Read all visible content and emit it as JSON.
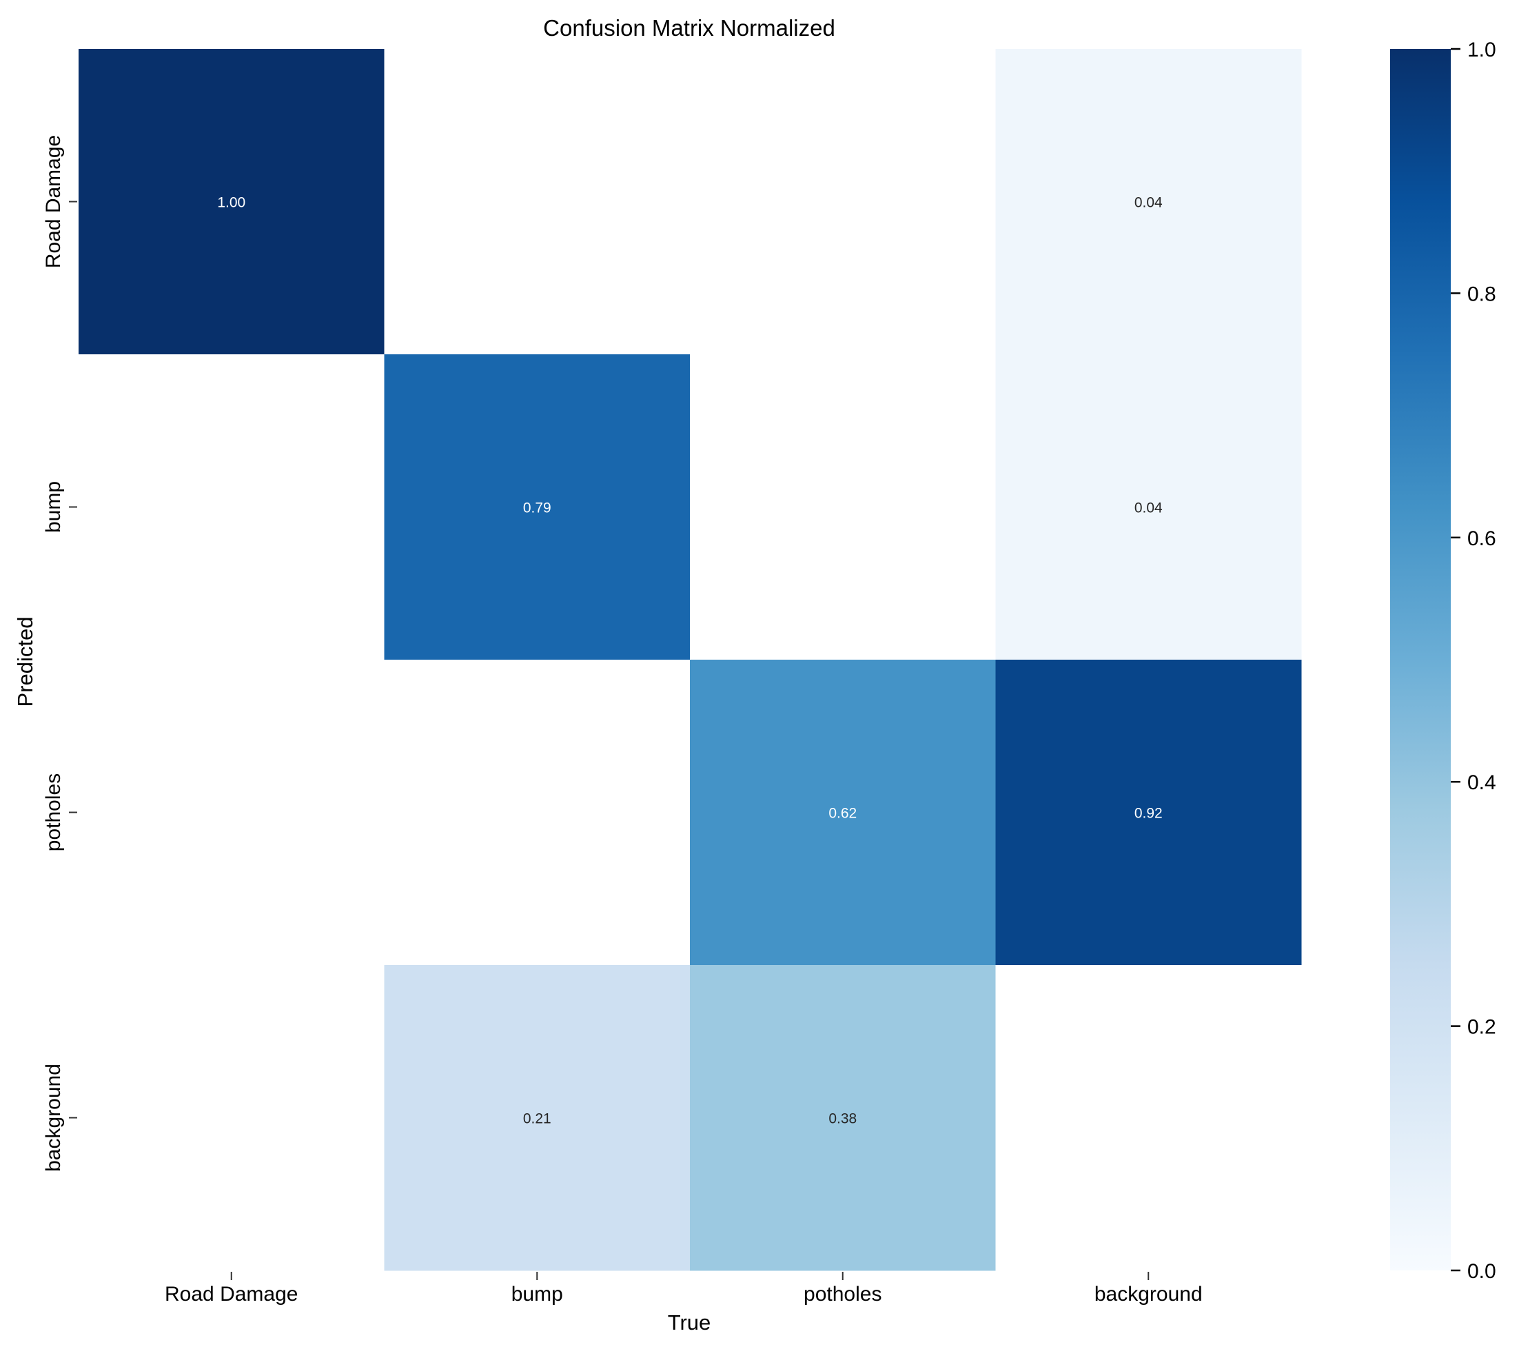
{
  "chart_data": {
    "type": "heatmap",
    "title": "Confusion Matrix Normalized",
    "xlabel": "True",
    "ylabel": "Predicted",
    "x_categories": [
      "Road Damage",
      "bump",
      "potholes",
      "background"
    ],
    "y_categories": [
      "Road Damage",
      "bump",
      "potholes",
      "background"
    ],
    "matrix": [
      [
        1.0,
        null,
        null,
        0.04
      ],
      [
        null,
        0.79,
        null,
        0.04
      ],
      [
        null,
        null,
        0.62,
        0.92
      ],
      [
        null,
        0.21,
        0.38,
        null
      ]
    ],
    "cell_labels": [
      [
        "1.00",
        "",
        "",
        "0.04"
      ],
      [
        "",
        "0.79",
        "",
        "0.04"
      ],
      [
        "",
        "",
        "0.62",
        "0.92"
      ],
      [
        "",
        "0.21",
        "0.38",
        ""
      ]
    ],
    "colorbar": {
      "range": [
        0.0,
        1.0
      ],
      "ticks": [
        0.0,
        0.2,
        0.4,
        0.6,
        0.8,
        1.0
      ],
      "tick_labels": [
        "0.0",
        "0.2",
        "0.4",
        "0.6",
        "0.8",
        "1.0"
      ],
      "colormap": "Blues"
    },
    "empty_cell_color": "#ffffff"
  }
}
